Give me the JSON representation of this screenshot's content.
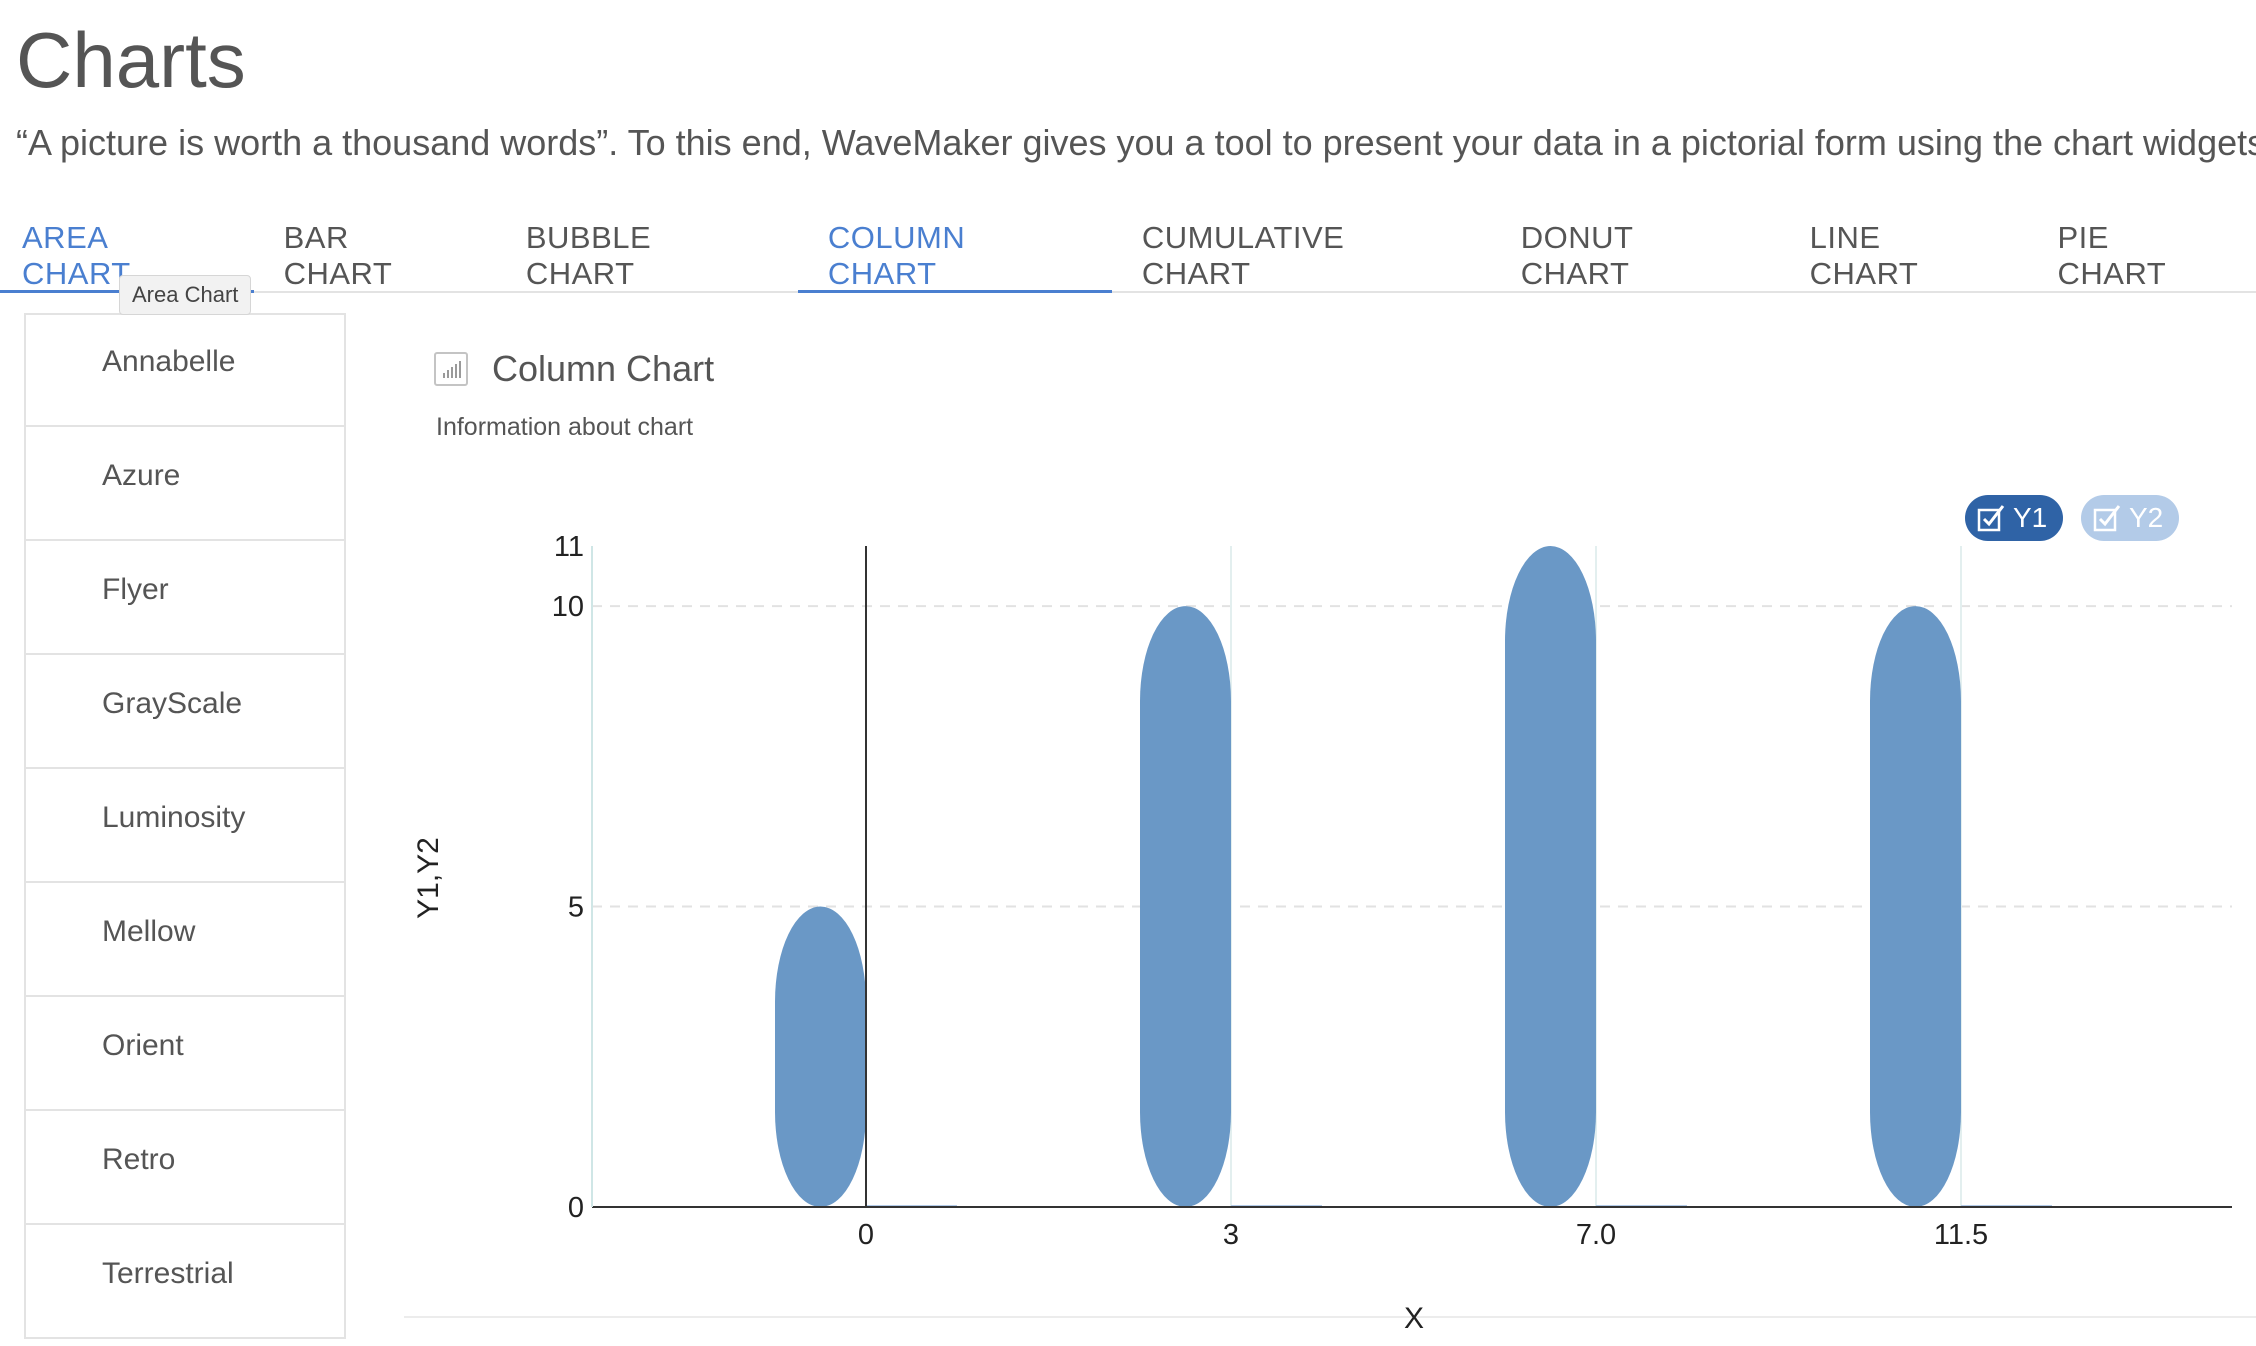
{
  "page": {
    "title": "Charts",
    "description": "“A picture is worth a thousand words”. To this end, WaveMaker gives you a tool to present your data in a pictorial form using the chart widgets."
  },
  "tabs": [
    {
      "label": "AREA CHART",
      "state": "hover"
    },
    {
      "label": "BAR CHART"
    },
    {
      "label": "BUBBLE CHART"
    },
    {
      "label": "COLUMN CHART",
      "state": "active"
    },
    {
      "label": "CUMULATIVE CHART"
    },
    {
      "label": "DONUT CHART"
    },
    {
      "label": "LINE CHART"
    },
    {
      "label": "PIE CHART"
    }
  ],
  "tooltip": "Area Chart",
  "sidebar": {
    "items": [
      "Annabelle",
      "Azure",
      "Flyer",
      "GrayScale",
      "Luminosity",
      "Mellow",
      "Orient",
      "Retro",
      "Terrestrial"
    ]
  },
  "panel": {
    "title": "Column Chart",
    "subtitle": "Information about chart",
    "icon": "column-chart-icon"
  },
  "legend": [
    {
      "label": "Y1",
      "checked": true,
      "color": "#2f63a6"
    },
    {
      "label": "Y2",
      "checked": true,
      "color": "#b3cbe8"
    }
  ],
  "chart_data": {
    "type": "bar",
    "categories": [
      "0",
      "3",
      "7.0",
      "11.5"
    ],
    "series": [
      {
        "name": "Y1",
        "values": [
          5,
          10,
          11,
          10
        ],
        "color": "#6a98c6"
      },
      {
        "name": "Y2",
        "values": [
          0,
          0,
          0,
          0
        ],
        "color": "#b3cbe8"
      }
    ],
    "xlabel": "X",
    "ylabel": "Y1,Y2",
    "yticks": [
      0,
      5,
      10,
      11
    ],
    "ylim": [
      0,
      11
    ],
    "grid": true,
    "legend_position": "top-right"
  }
}
